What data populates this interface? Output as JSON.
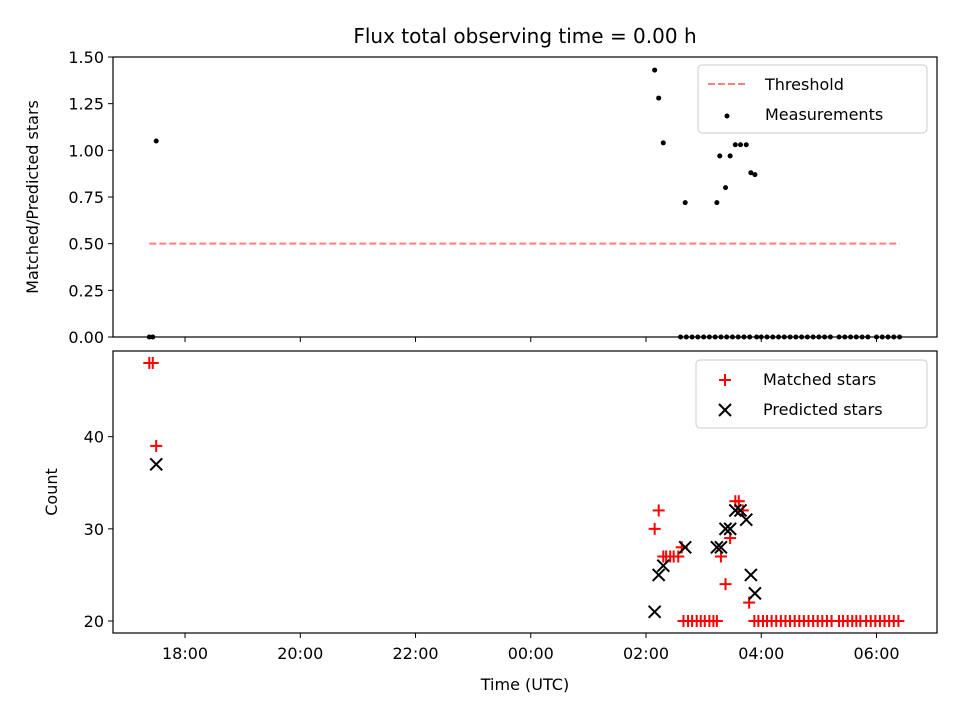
{
  "chart_data": [
    {
      "type": "scatter",
      "title": "Flux total observing time = 0.00 h",
      "xlabel": "",
      "ylabel": "Matched/Predicted stars",
      "xlim": [
        16.75,
        31.05
      ],
      "ylim": [
        0,
        1.5
      ],
      "yticks": [
        0,
        0.25,
        0.5,
        0.75,
        1.0,
        1.25,
        1.5
      ],
      "ytick_labels": [
        "0.00",
        "0.25",
        "0.50",
        "0.75",
        "1.00",
        "1.25",
        "1.50"
      ],
      "x_tick_positions": [
        18,
        20,
        22,
        24,
        26,
        28,
        30
      ],
      "legend": [
        "Threshold",
        "Measurements"
      ],
      "legend_position": "top-right",
      "threshold": {
        "value": 0.5,
        "x_start": 17.38,
        "x_end": 30.4
      },
      "series": [
        {
          "name": "Measurements",
          "x": [
            17.38,
            17.44,
            17.5,
            26.15,
            26.22,
            26.3,
            26.68,
            27.23,
            27.28,
            27.38,
            27.46,
            27.55,
            27.64,
            27.74,
            27.82,
            27.89,
            26.6,
            26.7,
            26.8,
            26.9,
            27.0,
            27.1,
            27.2,
            27.3,
            27.4,
            27.5,
            27.6,
            27.7,
            27.8,
            27.92,
            28.0,
            28.1,
            28.2,
            28.3,
            28.4,
            28.5,
            28.6,
            28.7,
            28.8,
            28.9,
            29.0,
            29.1,
            29.2,
            29.35,
            29.45,
            29.55,
            29.65,
            29.75,
            29.85,
            30.0,
            30.1,
            30.2,
            30.3,
            30.4
          ],
          "y": [
            0,
            0,
            1.05,
            1.43,
            1.28,
            1.04,
            0.72,
            0.72,
            0.97,
            0.8,
            0.97,
            1.03,
            1.03,
            1.03,
            0.88,
            0.87,
            0,
            0,
            0,
            0,
            0,
            0,
            0,
            0,
            0,
            0,
            0,
            0,
            0,
            0,
            0,
            0,
            0,
            0,
            0,
            0,
            0,
            0,
            0,
            0,
            0,
            0,
            0,
            0,
            0,
            0,
            0,
            0,
            0,
            0,
            0,
            0,
            0,
            0
          ]
        }
      ]
    },
    {
      "type": "scatter",
      "title": "",
      "xlabel": "Time (UTC)",
      "ylabel": "Count",
      "xlim": [
        16.75,
        31.05
      ],
      "ylim": [
        18.7,
        49.3
      ],
      "yticks": [
        20,
        30,
        40
      ],
      "ytick_labels": [
        "20",
        "30",
        "40"
      ],
      "x_tick_positions": [
        18,
        20,
        22,
        24,
        26,
        28,
        30
      ],
      "x_tick_labels": [
        "18:00",
        "20:00",
        "22:00",
        "00:00",
        "02:00",
        "04:00",
        "06:00"
      ],
      "legend": [
        "Matched stars",
        "Predicted stars"
      ],
      "legend_position": "top-right",
      "series": [
        {
          "name": "Matched stars",
          "color": "#ff0000",
          "marker": "plus",
          "x": [
            17.38,
            17.44,
            17.5,
            26.15,
            26.22,
            26.3,
            26.35,
            26.42,
            26.48,
            26.56,
            26.62,
            27.3,
            27.38,
            27.46,
            27.55,
            27.61,
            27.68,
            27.79,
            26.65,
            26.73,
            26.8,
            26.88,
            26.95,
            27.02,
            27.1,
            27.17,
            27.23,
            27.88,
            27.95,
            28.03,
            28.1,
            28.18,
            28.26,
            28.34,
            28.42,
            28.5,
            28.58,
            28.66,
            28.74,
            28.82,
            28.9,
            28.98,
            29.06,
            29.14,
            29.22,
            29.35,
            29.42,
            29.5,
            29.58,
            29.65,
            29.72,
            29.82,
            29.9,
            29.98,
            30.06,
            30.14,
            30.22,
            30.3,
            30.38
          ],
          "y": [
            48,
            48,
            39,
            30,
            32,
            27,
            27,
            27,
            27,
            27,
            28,
            27,
            24,
            29,
            33,
            33,
            32,
            22,
            20,
            20,
            20,
            20,
            20,
            20,
            20,
            20,
            20,
            20,
            20,
            20,
            20,
            20,
            20,
            20,
            20,
            20,
            20,
            20,
            20,
            20,
            20,
            20,
            20,
            20,
            20,
            20,
            20,
            20,
            20,
            20,
            20,
            20,
            20,
            20,
            20,
            20,
            20,
            20,
            20
          ]
        },
        {
          "name": "Predicted stars",
          "color": "#000000",
          "marker": "x",
          "x": [
            17.5,
            26.15,
            26.22,
            26.3,
            26.68,
            27.23,
            27.3,
            27.38,
            27.46,
            27.55,
            27.64,
            27.74,
            27.82,
            27.89
          ],
          "y": [
            37,
            21,
            25,
            26,
            28,
            28,
            28,
            30,
            30,
            32,
            32,
            31,
            25,
            23
          ]
        }
      ]
    }
  ]
}
